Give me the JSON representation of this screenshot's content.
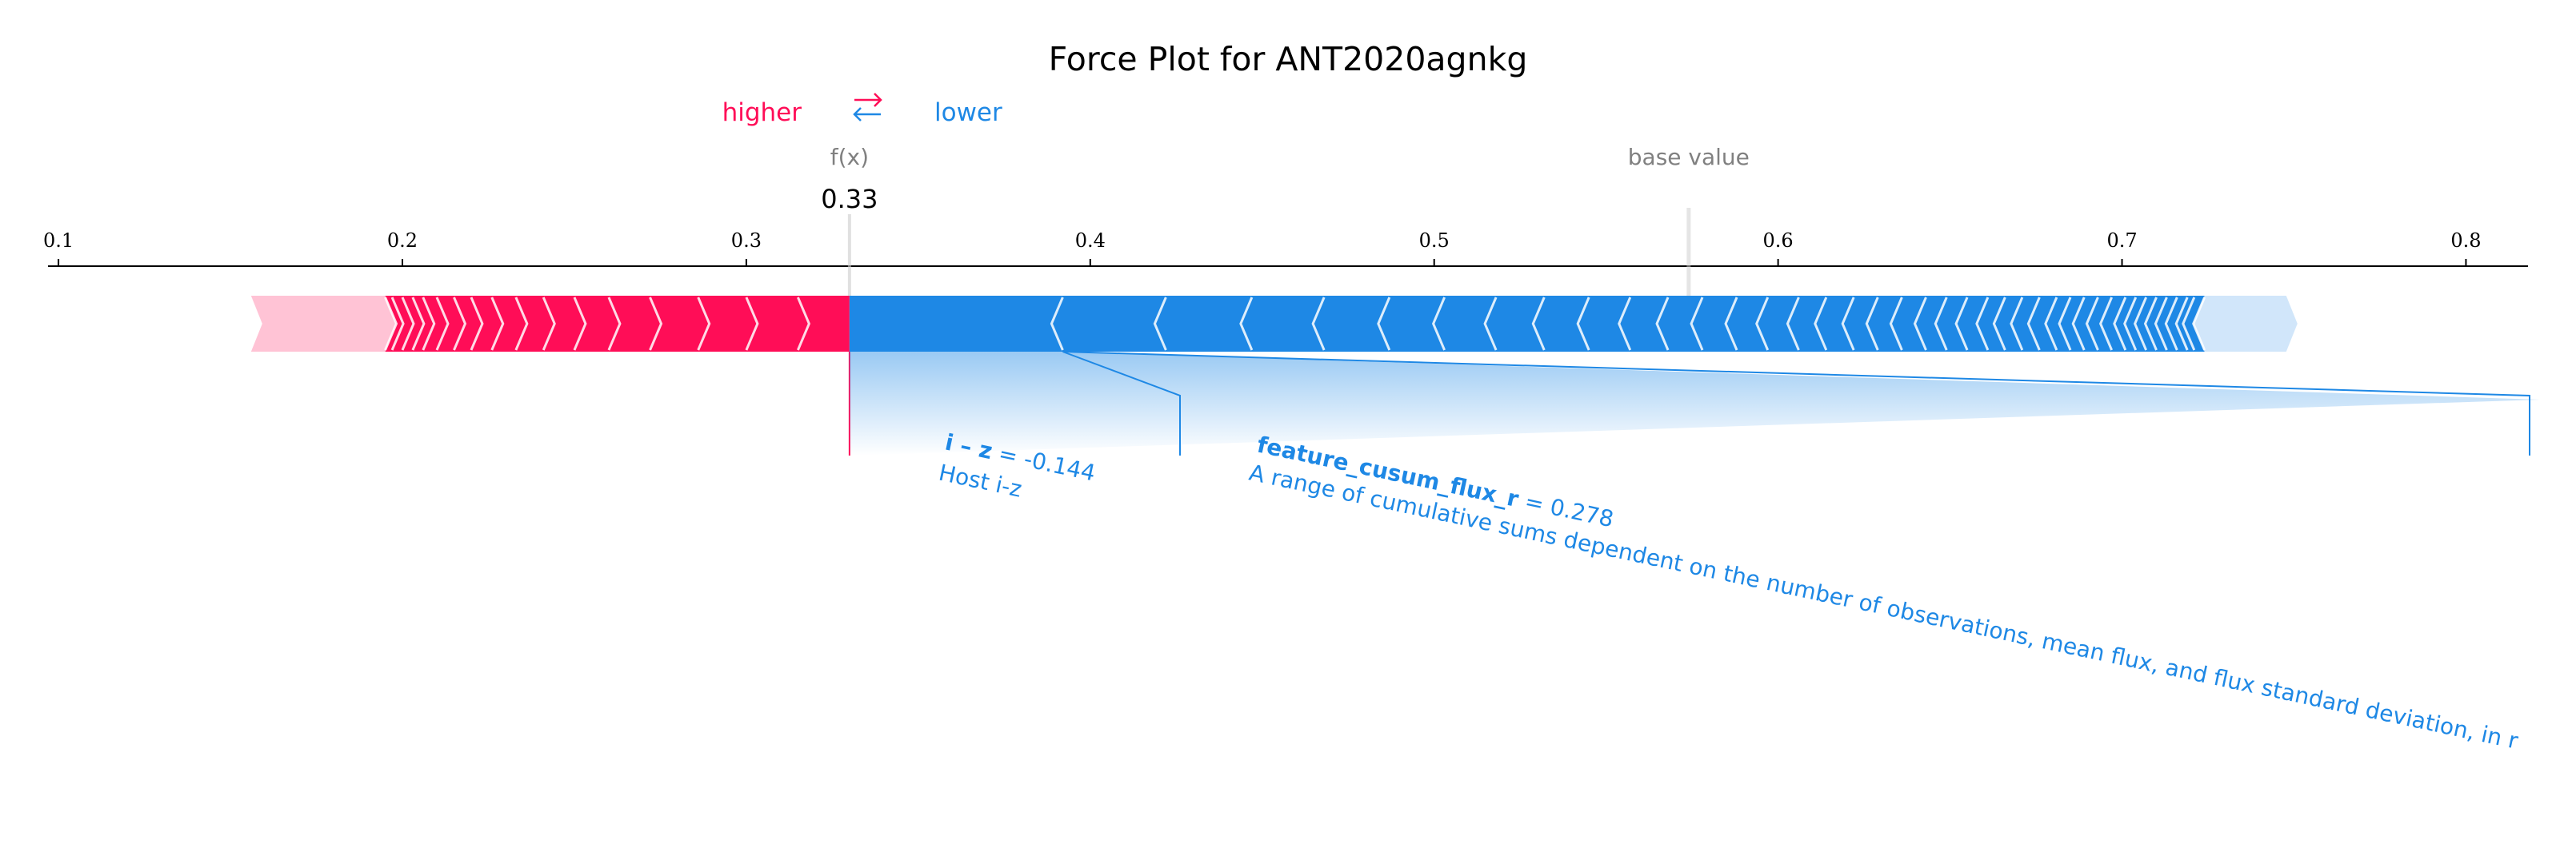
{
  "chart_data": {
    "type": "force",
    "title": "Force Plot for ANT2020agnkg",
    "legend": {
      "higher": "higher",
      "lower": "lower",
      "arrows": "⇄"
    },
    "colors": {
      "positive": "#ff0d57",
      "negative": "#1e88e5",
      "positive_light": "#ffc3d5",
      "negative_light": "#d1e6fa",
      "annotation": "#1e88e5",
      "muted": "#808080"
    },
    "fx_label": "f(x)",
    "fx_value": 0.33,
    "fx_display": "0.33",
    "base_label": "base value",
    "base_value": 0.574,
    "xlim": [
      0.083,
      0.832
    ],
    "ticks": [
      0.1,
      0.2,
      0.3,
      0.4,
      0.5,
      0.6,
      0.7,
      0.8
    ],
    "tick_labels": [
      "0.1",
      "0.2",
      "0.3",
      "0.4",
      "0.5",
      "0.6",
      "0.7",
      "0.8"
    ],
    "positive_range": [
      0.156,
      0.33
    ],
    "negative_range": [
      0.33,
      0.751
    ],
    "positive_boundaries": [
      0.156,
      0.195,
      0.197,
      0.2,
      0.203,
      0.206,
      0.21,
      0.215,
      0.22,
      0.226,
      0.233,
      0.241,
      0.25,
      0.26,
      0.272,
      0.286,
      0.3,
      0.315,
      0.33
    ],
    "negative_boundaries": [
      0.33,
      0.392,
      0.422,
      0.447,
      0.468,
      0.487,
      0.503,
      0.518,
      0.532,
      0.545,
      0.557,
      0.568,
      0.578,
      0.588,
      0.597,
      0.606,
      0.614,
      0.622,
      0.629,
      0.636,
      0.643,
      0.649,
      0.655,
      0.661,
      0.666,
      0.671,
      0.676,
      0.681,
      0.685,
      0.689,
      0.693,
      0.697,
      0.701,
      0.704,
      0.707,
      0.71,
      0.713,
      0.716,
      0.719,
      0.721,
      0.724,
      0.751
    ],
    "features": [
      {
        "name": "i – z",
        "value": "-0.144",
        "description": "Host i-z",
        "range": [
          0.33,
          0.392
        ]
      },
      {
        "name": "feature_cusum_flux_r",
        "value": "0.278",
        "description": "A range of cumulative sums dependent on the number of observations, mean flux, and flux standard deviation, in r",
        "range": [
          0.392,
          0.832
        ]
      }
    ]
  }
}
